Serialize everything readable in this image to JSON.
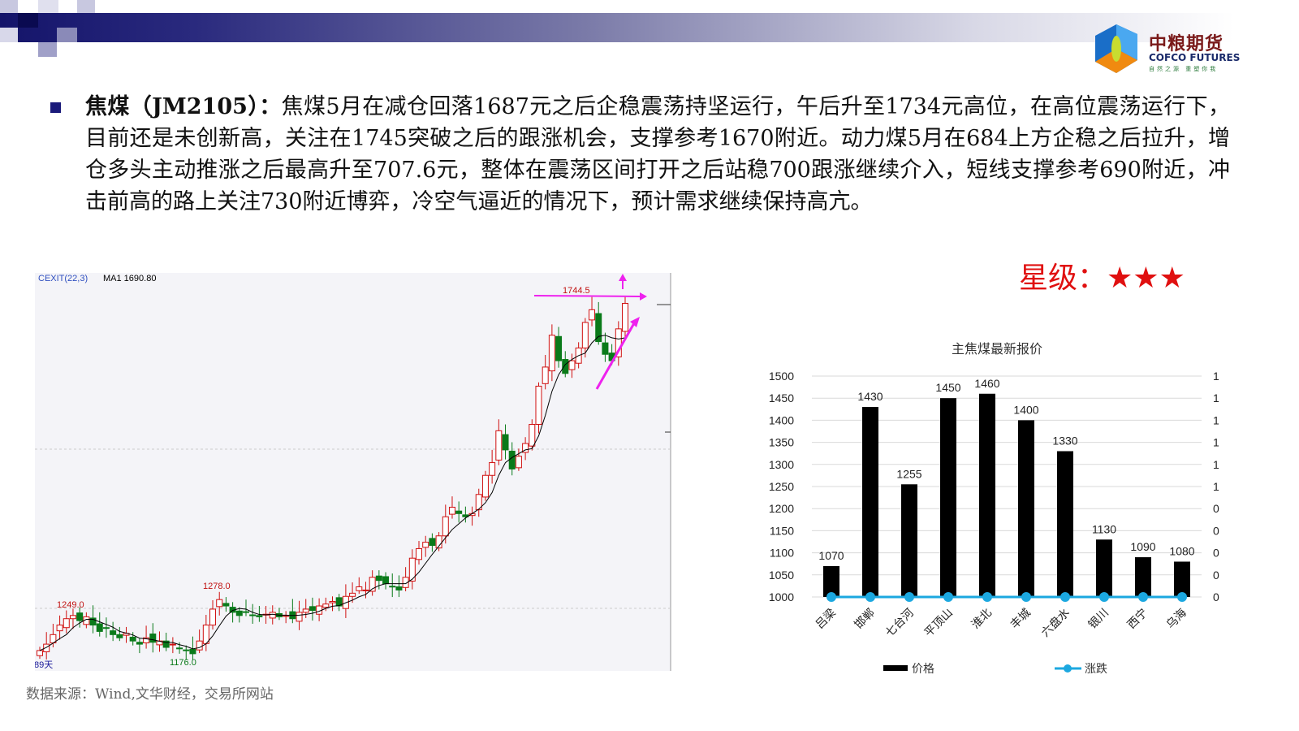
{
  "header": {
    "logo_cn": "中粮期货",
    "logo_en": "COFCO FUTURES",
    "logo_sub": "自然之源 重塑你我"
  },
  "body": {
    "title": "焦煤（JM2105）：",
    "text": "焦煤5月在减仓回落1687元之后企稳震荡持坚运行，午后升至1734元高位，在高位震荡运行下，目前还是未创新高，关注在1745突破之后的跟涨机会，支撑参考1670附近。动力煤5月在684上方企稳之后拉升，增仓多头主动推涨之后最高升至707.6元，整体在震荡区间打开之后站稳700跟涨继续介入，短线支撑参考690附近，冲击前高的路上关注730附近博弈，冷空气逼近的情况下，预计需求继续保持高亢。"
  },
  "rating": {
    "label": "星级：",
    "stars": "★★★",
    "count": 3
  },
  "source": "数据来源：Wind,文华财经，交易所网站",
  "chart_data": [
    {
      "type": "candlestick",
      "indicator_label": "CEXIT(22,3)",
      "ma_label": "MA1 1690.80",
      "period_label": "89天",
      "annotations": {
        "low": "1176.0",
        "high": "1744.5",
        "local_high_1": "1249.0",
        "local_high_2": "1278.0"
      },
      "approx_closes": [
        1185,
        1195,
        1210,
        1225,
        1235,
        1240,
        1232,
        1238,
        1225,
        1215,
        1220,
        1210,
        1205,
        1212,
        1200,
        1195,
        1205,
        1198,
        1200,
        1190,
        1195,
        1188,
        1185,
        1180,
        1200,
        1225,
        1250,
        1265,
        1255,
        1245,
        1240,
        1245,
        1240,
        1238,
        1242,
        1245,
        1238,
        1240,
        1235,
        1245,
        1250,
        1248,
        1255,
        1258,
        1262,
        1255,
        1270,
        1275,
        1285,
        1280,
        1300,
        1295,
        1290,
        1285,
        1280,
        1300,
        1330,
        1345,
        1355,
        1350,
        1365,
        1395,
        1410,
        1400,
        1395,
        1400,
        1430,
        1460,
        1480,
        1530,
        1500,
        1470,
        1490,
        1510,
        1540,
        1600,
        1630,
        1680,
        1640,
        1620,
        1640,
        1660,
        1700,
        1720,
        1670,
        1650,
        1640,
        1690,
        1730
      ],
      "colors": {
        "up": "#d01010",
        "down": "#0a7a1a",
        "annotation": "#ee22ee"
      }
    },
    {
      "type": "bar",
      "title": "主焦煤最新报价",
      "categories": [
        "吕梁",
        "邯郸",
        "七台河",
        "平顶山",
        "淮北",
        "丰城",
        "六盘水",
        "银川",
        "西宁",
        "乌海"
      ],
      "series": [
        {
          "name": "价格",
          "values": [
            1070,
            1430,
            1255,
            1450,
            1460,
            1400,
            1330,
            1130,
            1090,
            1080
          ],
          "color": "#000000"
        },
        {
          "name": "涨跌",
          "values": [
            0,
            0,
            0,
            0,
            0,
            0,
            0,
            0,
            0,
            0
          ],
          "color": "#1ca8e0",
          "type": "line"
        }
      ],
      "ylim": [
        1000,
        1500
      ],
      "yticks": [
        "1500",
        "1450",
        "1400",
        "1350",
        "1300",
        "1250",
        "1200",
        "1150",
        "1100",
        "1050",
        "1000"
      ],
      "y2ticks": [
        "1",
        "1",
        "1",
        "1",
        "1",
        "1",
        "0",
        "0",
        "0",
        "0",
        "0"
      ],
      "grid": true,
      "legend": "bottom"
    }
  ]
}
